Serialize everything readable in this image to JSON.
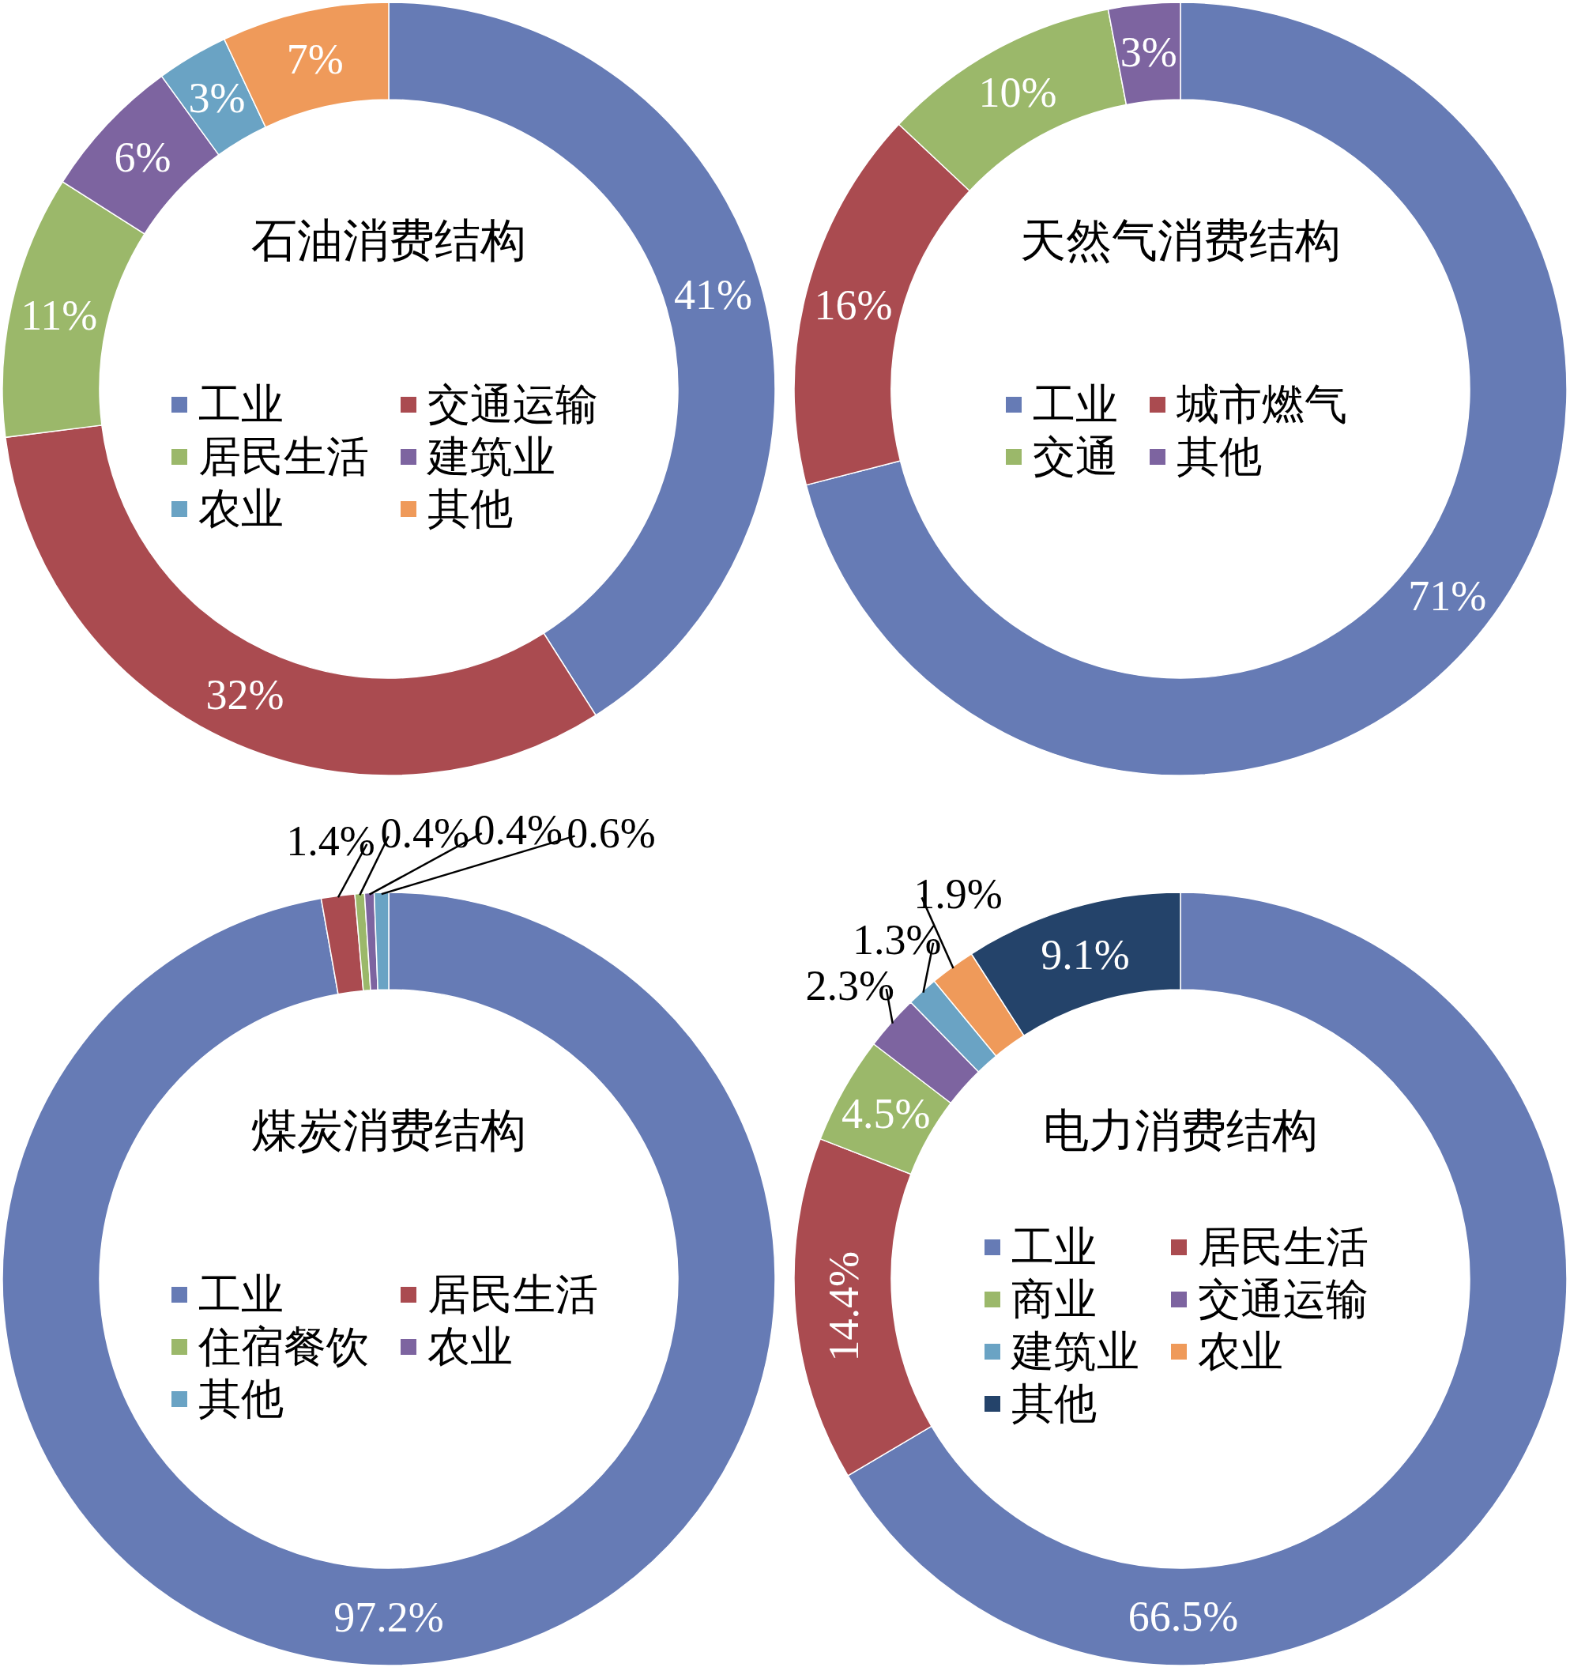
{
  "chart_data": [
    {
      "type": "donut",
      "title": "石油消费结构",
      "legend": "center",
      "categories": [
        "工业",
        "交通运输",
        "居民生活",
        "建筑业",
        "农业",
        "其他"
      ],
      "values": [
        41,
        32,
        11,
        6,
        3,
        7
      ],
      "value_labels": [
        "41%",
        "32%",
        "11%",
        "6%",
        "3%",
        "7%"
      ],
      "colors": [
        "#667bb5",
        "#aa4b50",
        "#9bb86a",
        "#7d64a0",
        "#6aa3c4",
        "#ef9a5a"
      ]
    },
    {
      "type": "donut",
      "title": "天然气消费结构",
      "legend": "center",
      "categories": [
        "工业",
        "城市燃气",
        "交通",
        "其他"
      ],
      "values": [
        71,
        16,
        10,
        3
      ],
      "value_labels": [
        "71%",
        "16%",
        "10%",
        "3%"
      ],
      "colors": [
        "#667bb5",
        "#aa4b50",
        "#9bb86a",
        "#7d64a0"
      ]
    },
    {
      "type": "donut",
      "title": "煤炭消费结构",
      "legend": "center",
      "categories": [
        "工业",
        "居民生活",
        "住宿餐饮",
        "农业",
        "其他"
      ],
      "values": [
        97.2,
        1.4,
        0.4,
        0.4,
        0.6
      ],
      "value_labels": [
        "97.2%",
        "1.4%",
        "0.4%",
        "0.4%",
        "0.6%"
      ],
      "colors": [
        "#667bb5",
        "#aa4b50",
        "#9bb86a",
        "#7d64a0",
        "#6aa3c4"
      ]
    },
    {
      "type": "donut",
      "title": "电力消费结构",
      "legend": "center",
      "categories": [
        "工业",
        "居民生活",
        "商业",
        "交通运输",
        "建筑业",
        "农业",
        "其他"
      ],
      "values": [
        66.5,
        14.4,
        4.5,
        2.3,
        1.3,
        1.9,
        9.1
      ],
      "value_labels": [
        "66.5%",
        "14.4%",
        "4.5%",
        "2.3%",
        "1.3%",
        "1.9%",
        "9.1%"
      ],
      "colors": [
        "#667bb5",
        "#aa4b50",
        "#9bb86a",
        "#7d64a0",
        "#6aa3c4",
        "#ef9a5a",
        "#24436a"
      ]
    }
  ]
}
